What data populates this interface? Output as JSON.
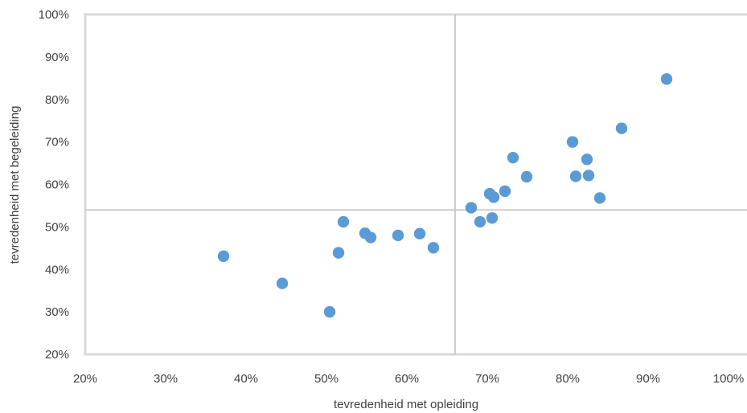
{
  "chart_data": {
    "type": "scatter",
    "xlabel": "tevredenheid met opleiding",
    "ylabel": "tevredenheid met begeleiding",
    "xlim": [
      0.2,
      1.0
    ],
    "ylim": [
      0.2,
      1.0
    ],
    "x_ticks": [
      "20%",
      "30%",
      "40%",
      "50%",
      "60%",
      "70%",
      "80%",
      "90%",
      "100%"
    ],
    "y_ticks": [
      "20%",
      "30%",
      "40%",
      "50%",
      "60%",
      "70%",
      "80%",
      "90%",
      "100%"
    ],
    "reference_lines": {
      "x": 0.66,
      "y": 0.54
    },
    "grid": false,
    "marker_color": "#5b9bd5",
    "points": [
      {
        "x": 0.372,
        "y": 0.431
      },
      {
        "x": 0.445,
        "y": 0.367
      },
      {
        "x": 0.504,
        "y": 0.3
      },
      {
        "x": 0.515,
        "y": 0.439
      },
      {
        "x": 0.521,
        "y": 0.512
      },
      {
        "x": 0.548,
        "y": 0.485
      },
      {
        "x": 0.555,
        "y": 0.475
      },
      {
        "x": 0.589,
        "y": 0.48
      },
      {
        "x": 0.616,
        "y": 0.484
      },
      {
        "x": 0.633,
        "y": 0.451
      },
      {
        "x": 0.68,
        "y": 0.545
      },
      {
        "x": 0.691,
        "y": 0.512
      },
      {
        "x": 0.703,
        "y": 0.578
      },
      {
        "x": 0.706,
        "y": 0.521
      },
      {
        "x": 0.708,
        "y": 0.57
      },
      {
        "x": 0.722,
        "y": 0.584
      },
      {
        "x": 0.732,
        "y": 0.663
      },
      {
        "x": 0.749,
        "y": 0.618
      },
      {
        "x": 0.806,
        "y": 0.7
      },
      {
        "x": 0.81,
        "y": 0.619
      },
      {
        "x": 0.824,
        "y": 0.659
      },
      {
        "x": 0.826,
        "y": 0.621
      },
      {
        "x": 0.84,
        "y": 0.568
      },
      {
        "x": 0.867,
        "y": 0.732
      },
      {
        "x": 0.923,
        "y": 0.848
      }
    ]
  }
}
